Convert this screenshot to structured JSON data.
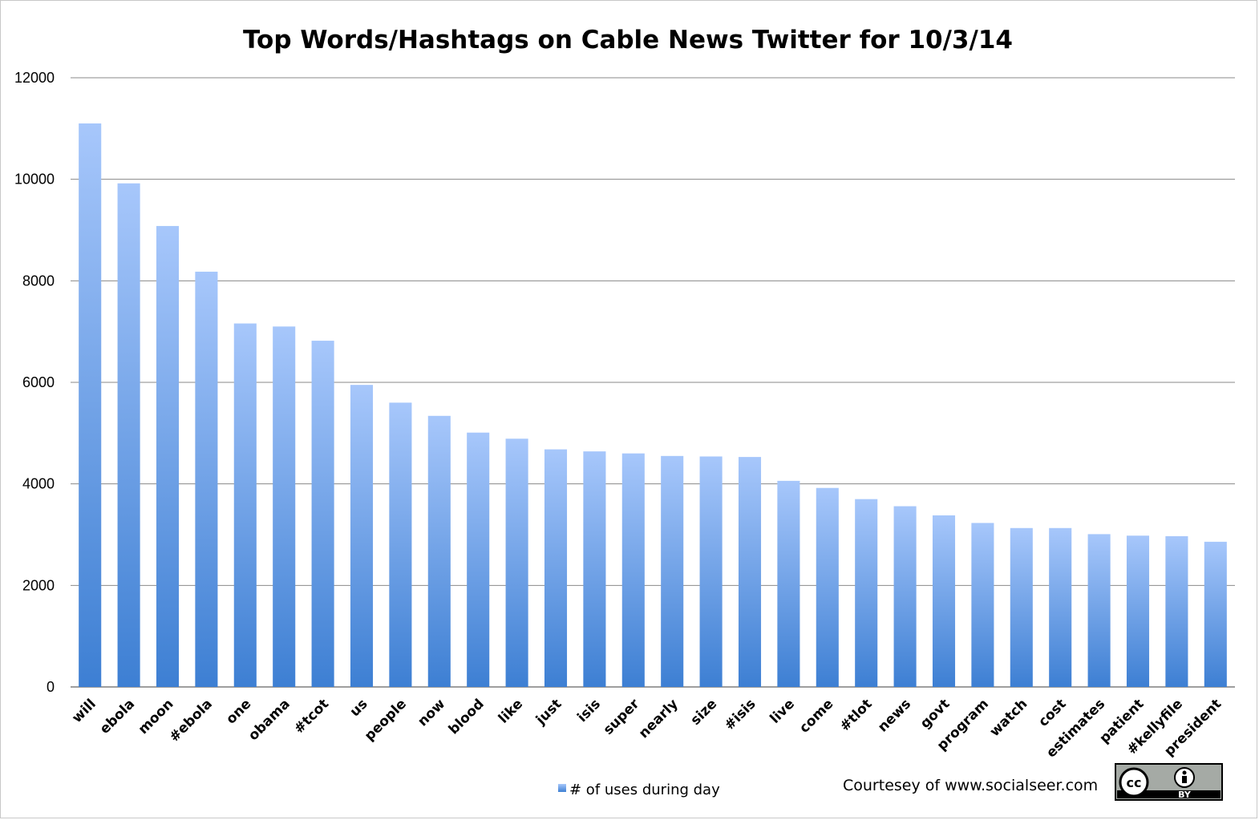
{
  "chart_data": {
    "type": "bar",
    "title": "Top Words/Hashtags on Cable News Twitter for 10/3/14",
    "xlabel": "",
    "ylabel": "",
    "ylim": [
      0,
      12000
    ],
    "yticks": [
      "0",
      "2000",
      "4000",
      "6000",
      "8000",
      "10000",
      "12000"
    ],
    "grid": true,
    "legend_position": "bottom",
    "categories": [
      "will",
      "ebola",
      "moon",
      "#ebola",
      "one",
      "obama",
      "#tcot",
      "us",
      "people",
      "now",
      "blood",
      "like",
      "just",
      "isis",
      "super",
      "nearly",
      "size",
      "#isis",
      "live",
      "come",
      "#tlot",
      "news",
      "govt",
      "program",
      "watch",
      "cost",
      "estimates",
      "patient",
      "#kellyfile",
      "president"
    ],
    "series": [
      {
        "name": "# of uses during day",
        "values": [
          11100,
          9920,
          9080,
          8180,
          7160,
          7100,
          6820,
          5950,
          5600,
          5340,
          5010,
          4890,
          4680,
          4640,
          4600,
          4550,
          4540,
          4530,
          4060,
          3920,
          3700,
          3560,
          3380,
          3230,
          3130,
          3130,
          3010,
          2980,
          2970,
          2860
        ]
      }
    ],
    "colors": {
      "bar_top": "#a7c7fb",
      "bar_bottom": "#3d7fd3",
      "gridline": "#8a8a8a",
      "axis": "#7f7f7f"
    }
  },
  "footer": {
    "credit": "Courtesey of www.socialseer.com",
    "license_badge": {
      "icon": "creative-commons-by-icon",
      "cc_text": "cc",
      "by_text": "BY"
    }
  }
}
